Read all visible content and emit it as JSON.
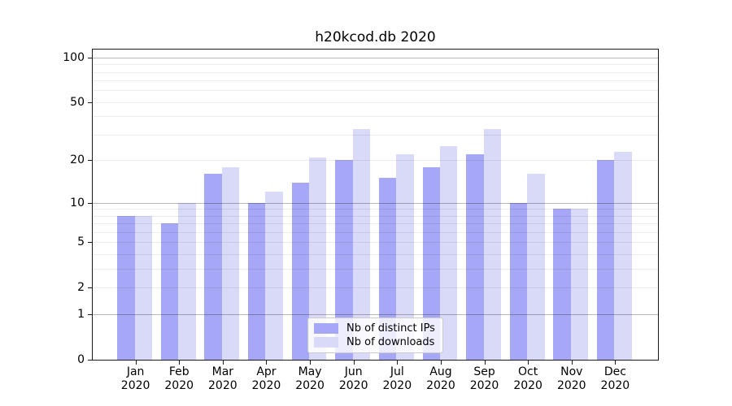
{
  "title": "h20kcod.db 2020",
  "chart_data": {
    "type": "bar",
    "title": "h20kcod.db 2020",
    "categories": [
      "Jan 2020",
      "Feb 2020",
      "Mar 2020",
      "Apr 2020",
      "May 2020",
      "Jun 2020",
      "Jul 2020",
      "Aug 2020",
      "Sep 2020",
      "Oct 2020",
      "Nov 2020",
      "Dec 2020"
    ],
    "series": [
      {
        "name": "Nb of distinct IPs",
        "color": "#a7a7f7",
        "values": [
          8,
          7,
          16,
          10,
          14,
          20,
          15,
          18,
          22,
          10,
          9,
          20
        ]
      },
      {
        "name": "Nb of downloads",
        "color": "#d9d9f8",
        "values": [
          8,
          10,
          18,
          12,
          21,
          33,
          22,
          25,
          33,
          16,
          9,
          23
        ]
      }
    ],
    "xlabel": "",
    "ylabel": "",
    "yscale": "log1p",
    "yticks": [
      0,
      1,
      2,
      5,
      10,
      20,
      50,
      100
    ],
    "ylim": [
      0,
      113
    ],
    "grid": true,
    "legend_position": "lower center"
  },
  "colors": {
    "background": "#ffffff",
    "spine": "#1a1a1a",
    "minor_grid": "#ebebeb",
    "major_grid": "#bababa"
  }
}
